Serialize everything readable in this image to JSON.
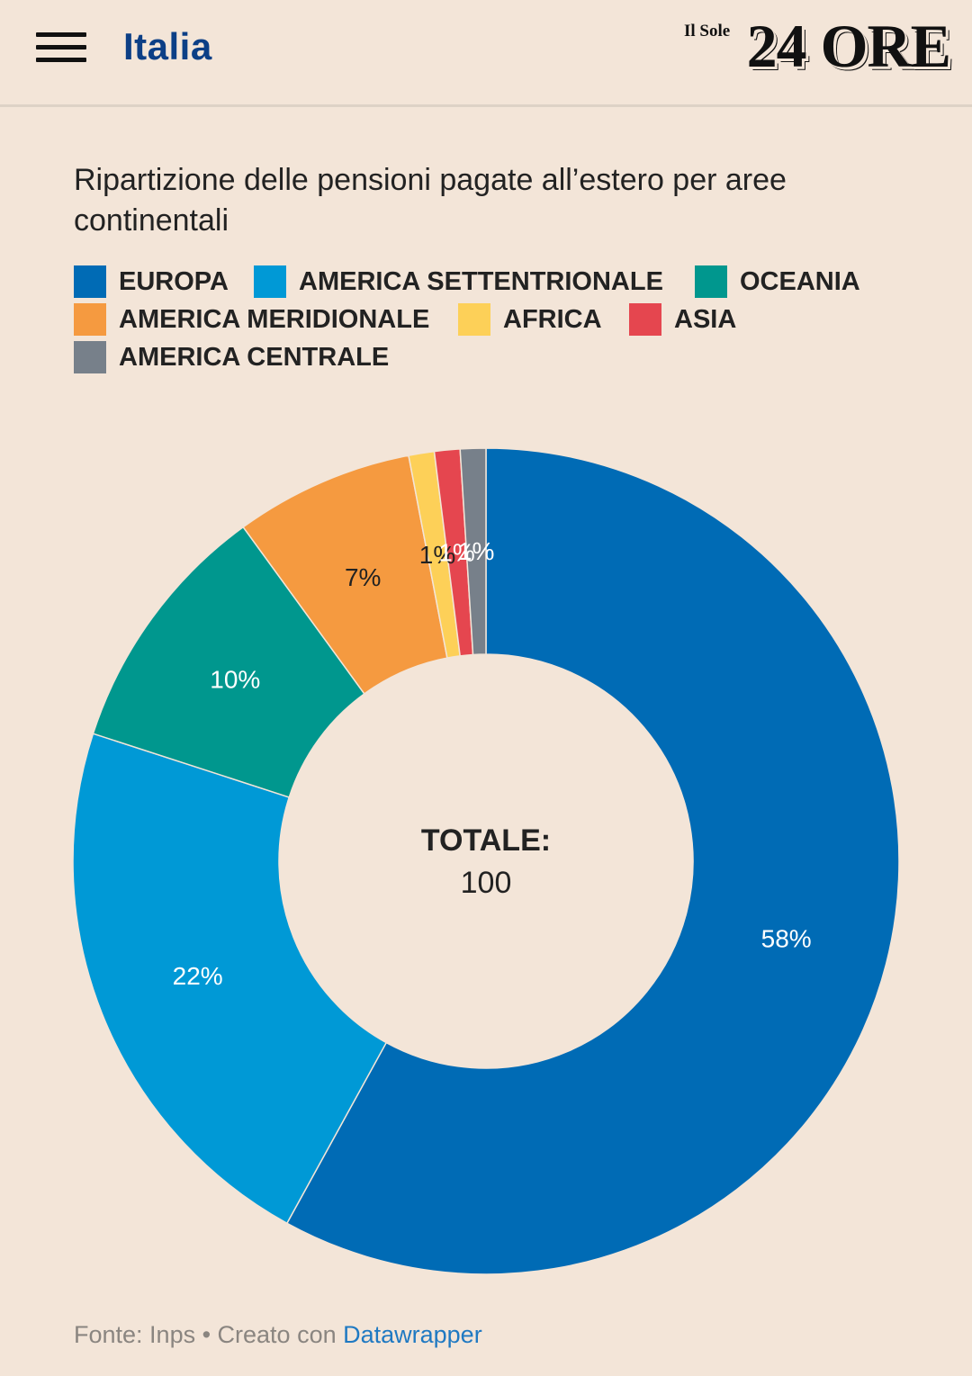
{
  "header": {
    "section": "Italia",
    "logo_small": "Il Sole",
    "logo_big": "24 ORE"
  },
  "title": "Ripartizione delle pensioni pagate all’estero per aree continentali",
  "center": {
    "label": "TOTALE:",
    "value": "100"
  },
  "footer": {
    "source": "Fonte: Inps • Creato con ",
    "link": "Datawrapper"
  },
  "legend": [
    {
      "name": "EUROPA",
      "color": "#006bb5"
    },
    {
      "name": "AMERICA SETTENTRIONALE",
      "color": "#0099d6"
    },
    {
      "name": "OCEANIA",
      "color": "#00978e"
    },
    {
      "name": "AMERICA MERIDIONALE",
      "color": "#f59a40"
    },
    {
      "name": "AFRICA",
      "color": "#fdd058"
    },
    {
      "name": "ASIA",
      "color": "#e5464f"
    },
    {
      "name": "AMERICA CENTRALE",
      "color": "#77808a"
    }
  ],
  "chart_data": {
    "type": "pie",
    "subtype": "donut",
    "title": "Ripartizione delle pensioni pagate all’estero per aree continentali",
    "categories": [
      "EUROPA",
      "AMERICA SETTENTRIONALE",
      "OCEANIA",
      "AMERICA MERIDIONALE",
      "AFRICA",
      "ASIA",
      "AMERICA CENTRALE"
    ],
    "values": [
      58,
      22,
      10,
      7,
      1,
      1,
      1
    ],
    "labels": [
      "58%",
      "22%",
      "10%",
      "7%",
      "1%",
      "1%",
      "1%"
    ],
    "colors": [
      "#006bb5",
      "#0099d6",
      "#00978e",
      "#f59a40",
      "#fdd058",
      "#e5464f",
      "#77808a"
    ],
    "label_colors": [
      "#ffffff",
      "#ffffff",
      "#ffffff",
      "#222222",
      "#222222",
      "#ffffff",
      "#ffffff"
    ],
    "total": 100
  }
}
